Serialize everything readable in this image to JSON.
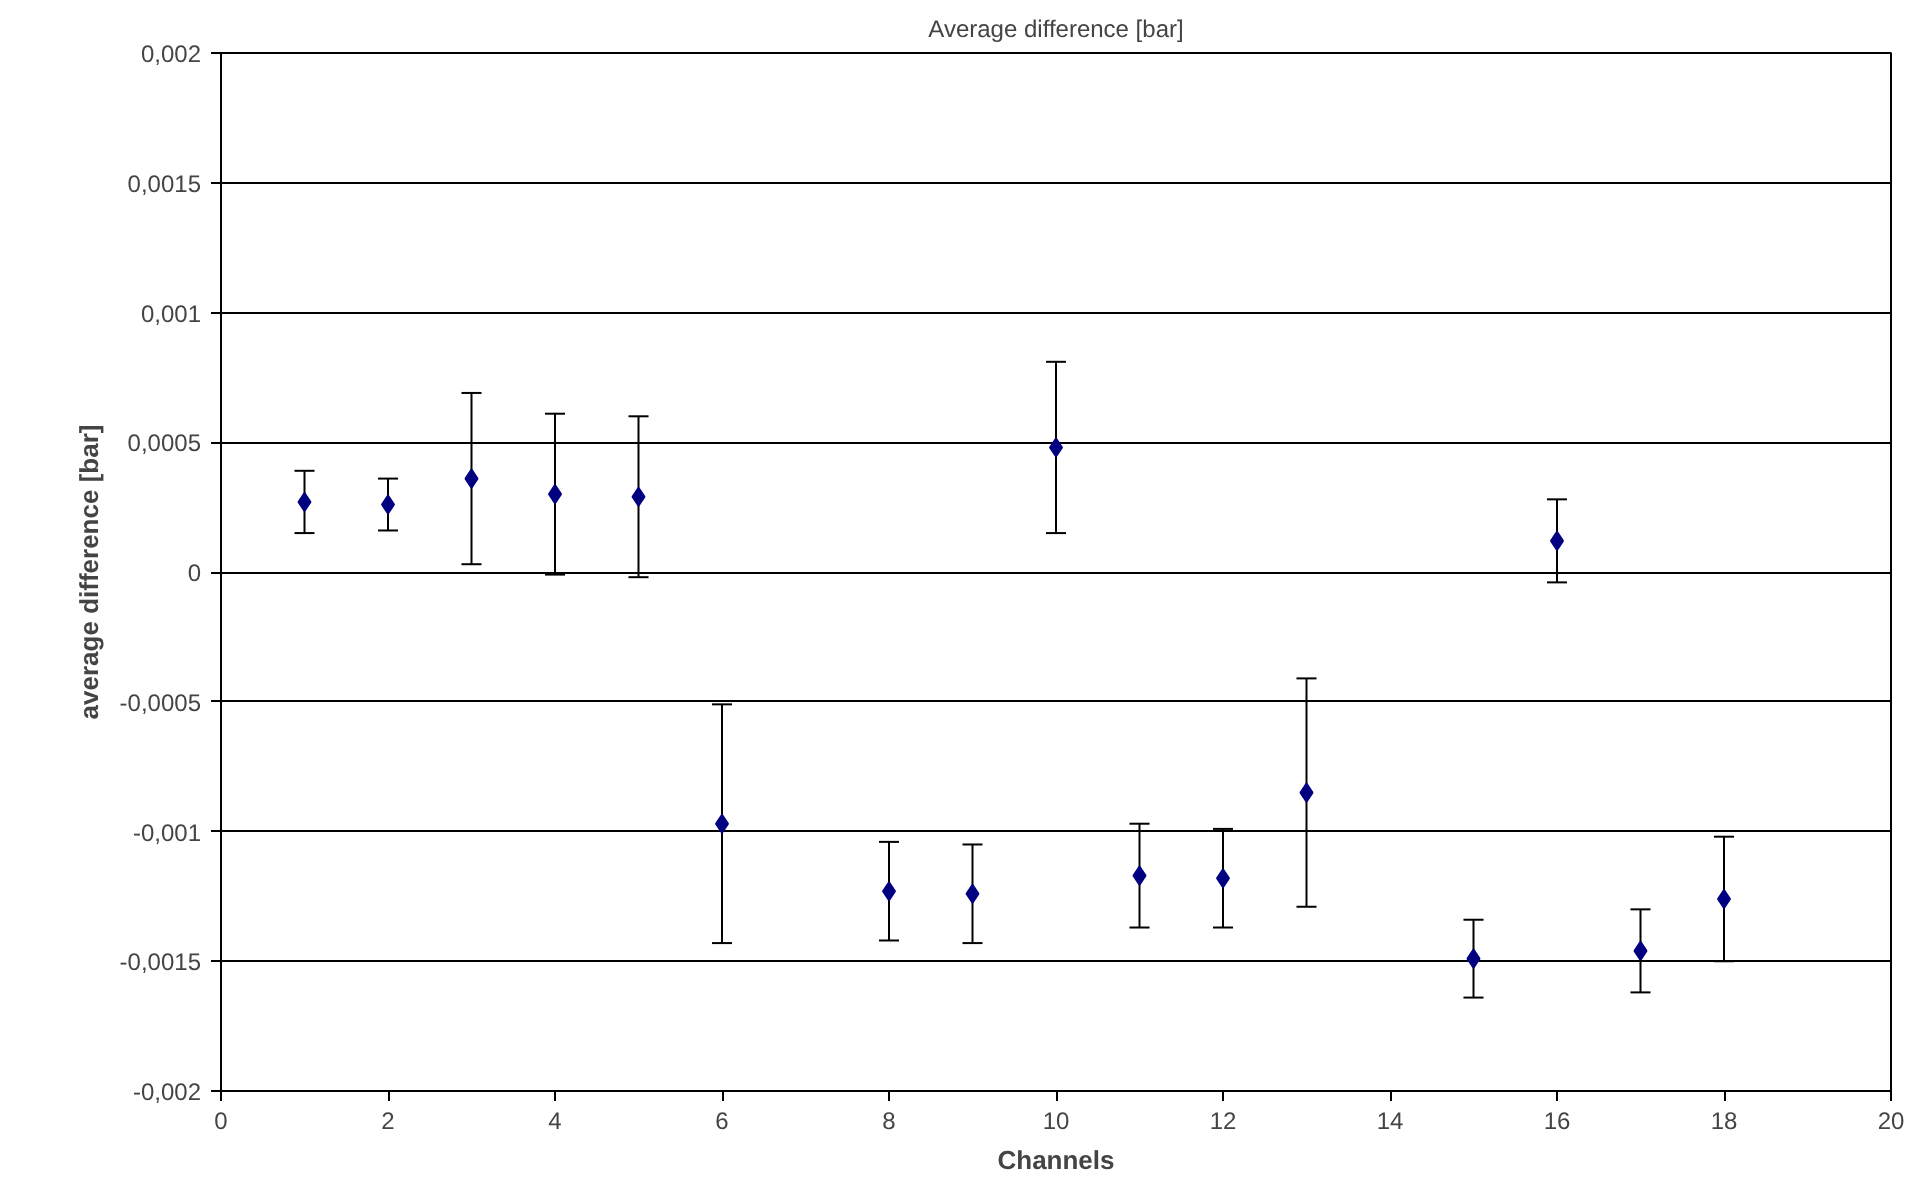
{
  "chart_data": {
    "type": "scatter",
    "title": "Average difference [bar]",
    "xlabel": "Channels",
    "ylabel": "average difference [bar]",
    "x": [
      1,
      2,
      3,
      4,
      5,
      6,
      8,
      9,
      10,
      11,
      12,
      13,
      15,
      16,
      17,
      18
    ],
    "series": [
      {
        "color": "#000080",
        "values": [
          0.00027,
          0.00026,
          0.00036,
          0.0003,
          0.00029,
          -0.00097,
          -0.00123,
          -0.00124,
          0.00048,
          -0.00117,
          -0.00118,
          -0.00085,
          -0.00149,
          0.00012,
          -0.00146,
          -0.00126
        ],
        "errors": [
          0.00012,
          0.0001,
          0.00033,
          0.00031,
          0.00031,
          0.00046,
          0.00019,
          0.00019,
          0.00033,
          0.0002,
          0.00019,
          0.00044,
          0.00015,
          0.00016,
          0.00016,
          0.00024
        ]
      }
    ],
    "xlim": [
      0,
      20
    ],
    "xticks": [
      0,
      2,
      4,
      6,
      8,
      10,
      12,
      14,
      16,
      18,
      20
    ],
    "ylim": [
      -0.002,
      0.002
    ],
    "yticks": [
      {
        "value": -0.002,
        "label": "-0,002"
      },
      {
        "value": -0.0015,
        "label": "-0,0015"
      },
      {
        "value": -0.001,
        "label": "-0,001"
      },
      {
        "value": -0.0005,
        "label": "-0,0005"
      },
      {
        "value": 0,
        "label": "0"
      },
      {
        "value": 0.0005,
        "label": "0,0005"
      },
      {
        "value": 0.001,
        "label": "0,001"
      },
      {
        "value": 0.0015,
        "label": "0,0015"
      },
      {
        "value": 0.002,
        "label": "0,002"
      }
    ],
    "grid": "y",
    "marker": "diamond"
  }
}
